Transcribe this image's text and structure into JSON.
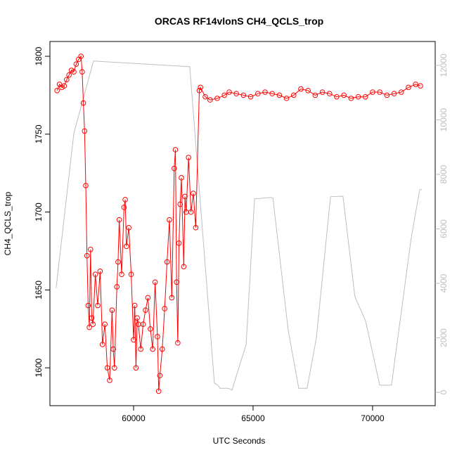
{
  "chart_data": {
    "type": "line",
    "title": "ORCAS RF14vlonS CH4_QCLS_trop",
    "x_label": "UTC Seconds",
    "y_label": "CH4_QCLS_trop",
    "xlim": [
      56500,
      72620
    ],
    "xticks": [
      60000,
      65000,
      70000
    ],
    "ylim": [
      1575.7,
      1809.5
    ],
    "yticks": [
      1600,
      1650,
      1700,
      1750,
      1800
    ],
    "y2lim": [
      -490,
      12877
    ],
    "y2ticks": [
      0,
      2000,
      4000,
      6000,
      8000,
      10000,
      12000
    ],
    "series": [
      {
        "color": "#ff0000",
        "markers": true,
        "x": [
          56800,
          56900,
          57000,
          57100,
          57200,
          57300,
          57400,
          57500,
          57600,
          57700,
          57800,
          57850,
          57900,
          57950,
          58000,
          58050,
          58100,
          58150,
          58200,
          58250,
          58300,
          58400,
          58500,
          58600,
          58700,
          58800,
          58900,
          59000,
          59100,
          59150,
          59200,
          59300,
          59350,
          59400,
          59500,
          59600,
          59650,
          59700,
          59800,
          59900,
          60000,
          60050,
          60100,
          60150,
          60200,
          60300,
          60400,
          60500,
          60600,
          60700,
          60800,
          60900,
          61000,
          61050,
          61100,
          61200,
          61300,
          61400,
          61500,
          61600,
          61700,
          61750,
          61800,
          61850,
          61900,
          61950,
          62000,
          62100,
          62150,
          62200,
          62300,
          62400,
          62500,
          62600,
          62750,
          62800,
          63000,
          63200,
          63500,
          63800,
          64000,
          64300,
          64600,
          64900,
          65200,
          65500,
          65800,
          66100,
          66400,
          66700,
          67000,
          67300,
          67600,
          67900,
          68200,
          68500,
          68800,
          69100,
          69400,
          69700,
          70000,
          70300,
          70600,
          70900,
          71200,
          71500,
          71800,
          72000
        ],
        "values": [
          1778,
          1782,
          1780,
          1781,
          1785,
          1788,
          1791,
          1790,
          1795,
          1798,
          1800,
          1790,
          1770,
          1752,
          1717,
          1672,
          1640,
          1626,
          1676,
          1632,
          1628,
          1660,
          1640,
          1662,
          1615,
          1628,
          1600,
          1592,
          1637,
          1612,
          1600,
          1652,
          1668,
          1695,
          1660,
          1703,
          1708,
          1678,
          1690,
          1660,
          1618,
          1640,
          1600,
          1632,
          1628,
          1612,
          1628,
          1637,
          1645,
          1625,
          1612,
          1655,
          1620,
          1585,
          1595,
          1612,
          1638,
          1668,
          1695,
          1645,
          1728,
          1740,
          1655,
          1616,
          1680,
          1705,
          1722,
          1665,
          1710,
          1700,
          1735,
          1700,
          1712,
          1690,
          1778,
          1780,
          1774,
          1772,
          1773,
          1775,
          1777,
          1776,
          1775,
          1774,
          1776,
          1777,
          1776,
          1775,
          1773,
          1775,
          1779,
          1778,
          1775,
          1777,
          1776,
          1774,
          1775,
          1773,
          1774,
          1774,
          1777,
          1777,
          1775,
          1776,
          1777,
          1780,
          1782,
          1781
        ]
      },
      {
        "color": "#bebebe",
        "axis": "y2",
        "markers": false,
        "x": [
          56760,
          57500,
          58320,
          62350,
          63380,
          63530,
          63620,
          63970,
          64120,
          64710,
          65060,
          65740,
          65830,
          66470,
          66910,
          67260,
          67650,
          68240,
          68760,
          69260,
          69710,
          70300,
          70790,
          71610,
          71970,
          72060
        ],
        "values": [
          3830,
          9500,
          12160,
          11950,
          340,
          260,
          150,
          150,
          80,
          1760,
          7100,
          7150,
          7130,
          2280,
          150,
          150,
          2000,
          7180,
          7200,
          3510,
          2610,
          260,
          260,
          5630,
          7440,
          7440
        ]
      }
    ]
  }
}
